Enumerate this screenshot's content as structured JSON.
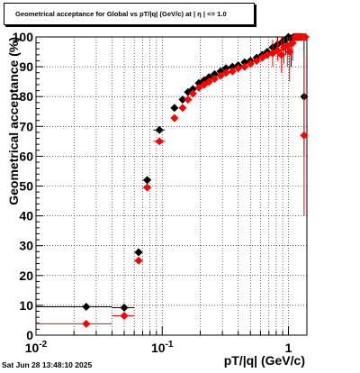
{
  "chart_data": {
    "type": "scatter",
    "title": "Geometrical acceptance for Global vs pT/|q| (GeV/c) at |  η  | <= 1.0",
    "xlabel": "pT/|q| (GeV/c)",
    "ylabel": "Geometrical acceptance (%)",
    "xscale": "log",
    "xlim": [
      0.01,
      1.4
    ],
    "ylim": [
      0,
      100
    ],
    "grid": true,
    "xticks": [
      {
        "v": 0.01,
        "mant": "10",
        "exp": "-2"
      },
      {
        "v": 0.1,
        "mant": "10",
        "exp": "-1"
      },
      {
        "v": 1,
        "mant": "1",
        "exp": ""
      }
    ],
    "yticks": [
      0,
      10,
      20,
      30,
      40,
      50,
      60,
      70,
      80,
      90,
      100
    ],
    "series": [
      {
        "color": "#000000",
        "marker": "diamond",
        "points": [
          {
            "x": 0.025,
            "y": 9.5,
            "xlo": 0.01,
            "xhi": 0.04
          },
          {
            "x": 0.05,
            "y": 9.2,
            "xlo": 0.04,
            "xhi": 0.06
          },
          {
            "x": 0.065,
            "y": 27.8,
            "xlo": 0.06,
            "xhi": 0.07
          },
          {
            "x": 0.076,
            "y": 52.0,
            "xlo": 0.07,
            "xhi": 0.082
          },
          {
            "x": 0.095,
            "y": 68.8,
            "xlo": 0.085,
            "xhi": 0.105
          },
          {
            "x": 0.125,
            "y": 76.2,
            "xlo": 0.118,
            "xhi": 0.132
          },
          {
            "x": 0.145,
            "y": 79.0
          },
          {
            "x": 0.16,
            "y": 81.5
          },
          {
            "x": 0.175,
            "y": 82.5
          },
          {
            "x": 0.195,
            "y": 84.5
          },
          {
            "x": 0.215,
            "y": 85.5
          },
          {
            "x": 0.235,
            "y": 86.5
          },
          {
            "x": 0.26,
            "y": 87.5
          },
          {
            "x": 0.29,
            "y": 88.5
          },
          {
            "x": 0.32,
            "y": 89.5
          },
          {
            "x": 0.36,
            "y": 90.0
          },
          {
            "x": 0.4,
            "y": 90.5
          },
          {
            "x": 0.45,
            "y": 91.5
          },
          {
            "x": 0.5,
            "y": 92.0
          },
          {
            "x": 0.56,
            "y": 93.0
          },
          {
            "x": 0.62,
            "y": 94.0
          },
          {
            "x": 0.68,
            "y": 95.0
          },
          {
            "x": 0.75,
            "y": 96.5,
            "ylo": 94.0,
            "yhi": 99.0
          },
          {
            "x": 0.82,
            "y": 97.5,
            "ylo": 95.0,
            "yhi": 100.0
          },
          {
            "x": 0.9,
            "y": 98.5,
            "ylo": 95.5,
            "yhi": 100.0
          },
          {
            "x": 0.95,
            "y": 99.0,
            "ylo": 94.0,
            "yhi": 100.0
          },
          {
            "x": 1.0,
            "y": 100.0
          },
          {
            "x": 1.05,
            "y": 99.5,
            "ylo": 90.0,
            "yhi": 100.0
          },
          {
            "x": 1.1,
            "y": 100.0
          },
          {
            "x": 1.15,
            "y": 100.0
          },
          {
            "x": 1.2,
            "y": 100.0
          },
          {
            "x": 1.25,
            "y": 100.0
          },
          {
            "x": 1.33,
            "y": 80.0,
            "ylo": 60.0,
            "yhi": 100.0
          }
        ]
      },
      {
        "color": "#ff0000",
        "marker": "diamond",
        "points": [
          {
            "x": 0.025,
            "y": 3.8,
            "xlo": 0.01,
            "xhi": 0.04
          },
          {
            "x": 0.05,
            "y": 6.5,
            "xlo": 0.04,
            "xhi": 0.06
          },
          {
            "x": 0.065,
            "y": 25.0,
            "xlo": 0.06,
            "xhi": 0.07
          },
          {
            "x": 0.076,
            "y": 49.5,
            "xlo": 0.07,
            "xhi": 0.082
          },
          {
            "x": 0.095,
            "y": 65.0,
            "xlo": 0.085,
            "xhi": 0.105
          },
          {
            "x": 0.125,
            "y": 72.8,
            "xlo": 0.118,
            "xhi": 0.132
          },
          {
            "x": 0.145,
            "y": 76.2
          },
          {
            "x": 0.16,
            "y": 79.0
          },
          {
            "x": 0.175,
            "y": 81.0
          },
          {
            "x": 0.195,
            "y": 83.0
          },
          {
            "x": 0.215,
            "y": 84.0
          },
          {
            "x": 0.235,
            "y": 85.0
          },
          {
            "x": 0.26,
            "y": 86.0
          },
          {
            "x": 0.29,
            "y": 87.0
          },
          {
            "x": 0.32,
            "y": 88.0
          },
          {
            "x": 0.36,
            "y": 88.5
          },
          {
            "x": 0.4,
            "y": 89.5
          },
          {
            "x": 0.45,
            "y": 90.0
          },
          {
            "x": 0.5,
            "y": 91.0
          },
          {
            "x": 0.56,
            "y": 92.0
          },
          {
            "x": 0.62,
            "y": 93.0
          },
          {
            "x": 0.68,
            "y": 94.0
          },
          {
            "x": 0.75,
            "y": 94.5,
            "ylo": 90.0,
            "yhi": 99.0
          },
          {
            "x": 0.82,
            "y": 95.5,
            "ylo": 92.0,
            "yhi": 99.0
          },
          {
            "x": 0.88,
            "y": 94.0,
            "ylo": 88.0,
            "yhi": 100.0
          },
          {
            "x": 0.92,
            "y": 96.5,
            "ylo": 91.0,
            "yhi": 100.0
          },
          {
            "x": 0.98,
            "y": 97.0,
            "ylo": 90.0,
            "yhi": 100.0
          },
          {
            "x": 1.02,
            "y": 95.0,
            "ylo": 85.0,
            "yhi": 100.0
          },
          {
            "x": 1.08,
            "y": 98.0,
            "ylo": 92.0,
            "yhi": 100.0
          },
          {
            "x": 1.13,
            "y": 100.0
          },
          {
            "x": 1.18,
            "y": 100.0
          },
          {
            "x": 1.23,
            "y": 100.0
          },
          {
            "x": 1.28,
            "y": 100.0
          },
          {
            "x": 1.32,
            "y": 100.0
          },
          {
            "x": 1.36,
            "y": 100.0
          },
          {
            "x": 1.33,
            "y": 67.0,
            "ylo": 40.0,
            "yhi": 95.0
          }
        ]
      }
    ]
  },
  "timestamp": "Sat Jun 28 13:48:10 2025"
}
